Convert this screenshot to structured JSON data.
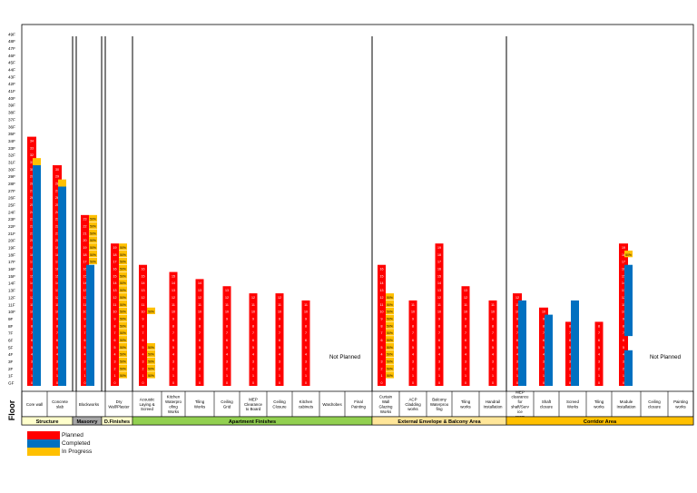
{
  "chart_data": {
    "type": "bar",
    "ylabel": "Floor",
    "floor_labels": [
      "GF",
      "1F",
      "2F",
      "3F",
      "4F",
      "5F",
      "6F",
      "7F",
      "8F",
      "9F",
      "10F",
      "11F",
      "12F",
      "13F",
      "14F",
      "15F",
      "16F",
      "17F",
      "18F",
      "19F",
      "20F",
      "21F",
      "22F",
      "23F",
      "24F",
      "25F",
      "26F",
      "27F",
      "28F",
      "29F",
      "30F",
      "31F",
      "32F",
      "33F",
      "34F",
      "35F",
      "36F",
      "37F",
      "38F",
      "39F",
      "40F",
      "41F",
      "42F",
      "43F",
      "44F",
      "45F",
      "46F",
      "47F",
      "48F",
      "49F"
    ],
    "status_colors": {
      "planned": "#ff0000",
      "completed": "#0070c0",
      "in_progress": "#ffc000"
    },
    "percent_label": "50%",
    "categories": [
      {
        "label": "Core wall",
        "group": "Structure",
        "planned": 35,
        "completed": 31,
        "in_progress": 1
      },
      {
        "label": "Concrete slab",
        "group": "Structure",
        "planned": 31,
        "completed": 28,
        "in_progress": 1
      },
      {
        "label": "Blockworks",
        "group": "Masonry",
        "planned": 24,
        "completed": 17,
        "in_progress": 5,
        "progress_floors": [
          17,
          18,
          19,
          20,
          21,
          22,
          23
        ]
      },
      {
        "label": "Dry Wall/Plaster",
        "group": "D.Finishes",
        "planned": 20,
        "completed": 0,
        "in_progress": 0,
        "progress_floors": [
          1,
          2,
          3,
          4,
          5,
          6,
          7,
          8,
          9,
          10,
          11,
          12,
          13,
          14,
          15,
          16,
          17,
          18,
          19
        ]
      },
      {
        "label": "Acoustic Laying & Screed",
        "group": "Apartment Finishes",
        "planned": 17,
        "completed": 0,
        "in_progress": 0,
        "progress_floors": [
          1,
          2,
          3,
          4,
          5,
          10
        ]
      },
      {
        "label": "Kitchen Waterproofing Works",
        "group": "Apartment Finishes",
        "planned": 16,
        "completed": 0,
        "in_progress": 0
      },
      {
        "label": "Tiling Works",
        "group": "Apartment Finishes",
        "planned": 15,
        "completed": 0,
        "in_progress": 0
      },
      {
        "label": "Ceiling Grid",
        "group": "Apartment Finishes",
        "planned": 14,
        "completed": 0,
        "in_progress": 0
      },
      {
        "label": "MEP Clearance to Board",
        "group": "Apartment Finishes",
        "planned": 13,
        "completed": 0,
        "in_progress": 0
      },
      {
        "label": "Ceiling Closure",
        "group": "Apartment Finishes",
        "planned": 13,
        "completed": 0,
        "in_progress": 0
      },
      {
        "label": "Kitchen cabinets",
        "group": "Apartment Finishes",
        "planned": 12,
        "completed": 0,
        "in_progress": 0
      },
      {
        "label": "Wardrobes",
        "group": "Apartment Finishes",
        "planned": 0,
        "completed": 0,
        "in_progress": 0
      },
      {
        "label": "Final Painting",
        "group": "Apartment Finishes",
        "planned": 0,
        "completed": 0,
        "in_progress": 0
      },
      {
        "label": "Curtain Wall Glazing Works",
        "group": "External Envelope & Balcony Area",
        "planned": 17,
        "completed": 0,
        "in_progress": 0,
        "progress_floors": [
          1,
          2,
          3,
          4,
          5,
          6,
          7,
          8,
          9,
          10,
          11,
          12
        ]
      },
      {
        "label": "ACP Cladding works",
        "group": "External Envelope & Balcony Area",
        "planned": 12,
        "completed": 0,
        "in_progress": 0
      },
      {
        "label": "Balcony Waterproofing",
        "group": "External Envelope & Balcony Area",
        "planned": 20,
        "completed": 0,
        "in_progress": 0
      },
      {
        "label": "Tiling works",
        "group": "External Envelope & Balcony Area",
        "planned": 14,
        "completed": 0,
        "in_progress": 0
      },
      {
        "label": "Handrail Installation",
        "group": "External Envelope & Balcony Area",
        "planned": 12,
        "completed": 0,
        "in_progress": 0
      },
      {
        "label": "MEP clearance for shaft/Service room",
        "group": "Corridor Area",
        "planned": 13,
        "completed": 12,
        "in_progress": 0
      },
      {
        "label": "Shaft closure",
        "group": "Corridor Area",
        "planned": 11,
        "completed": 10,
        "in_progress": 0
      },
      {
        "label": "Screed Works",
        "group": "Corridor Area",
        "planned": 9,
        "completed": 12,
        "in_progress": 0
      },
      {
        "label": "Tiling works",
        "group": "Corridor Area",
        "planned": 9,
        "completed": 0,
        "in_progress": 0
      },
      {
        "label": "Module Installation",
        "group": "Corridor Area",
        "planned": 20,
        "completed": 17,
        "in_progress": 1,
        "completed_gap": [
          5,
          6
        ],
        "progress_floors": [
          18
        ]
      },
      {
        "label": "Ceiling closure",
        "group": "Corridor Area",
        "planned": 0,
        "completed": 0,
        "in_progress": 0
      },
      {
        "label": "Painting works",
        "group": "Corridor Area",
        "planned": 0,
        "completed": 0,
        "in_progress": 0
      }
    ],
    "groups": [
      {
        "name": "Structure",
        "color": "#ffffcc"
      },
      {
        "name": "Masonry",
        "color": "#a6a6a6"
      },
      {
        "name": "D.Finishes",
        "color": "#ffffcc"
      },
      {
        "name": "Apartment Finishes",
        "color": "#92d050"
      },
      {
        "name": "External  Envelope & Balcony Area",
        "color": "#ffe699"
      },
      {
        "name": "Corridor Area",
        "color": "#ffc000"
      }
    ],
    "annotations": [
      "Not Planned",
      "Not Planned"
    ],
    "legend": [
      "Planned",
      "Completed",
      "In Progress"
    ]
  }
}
